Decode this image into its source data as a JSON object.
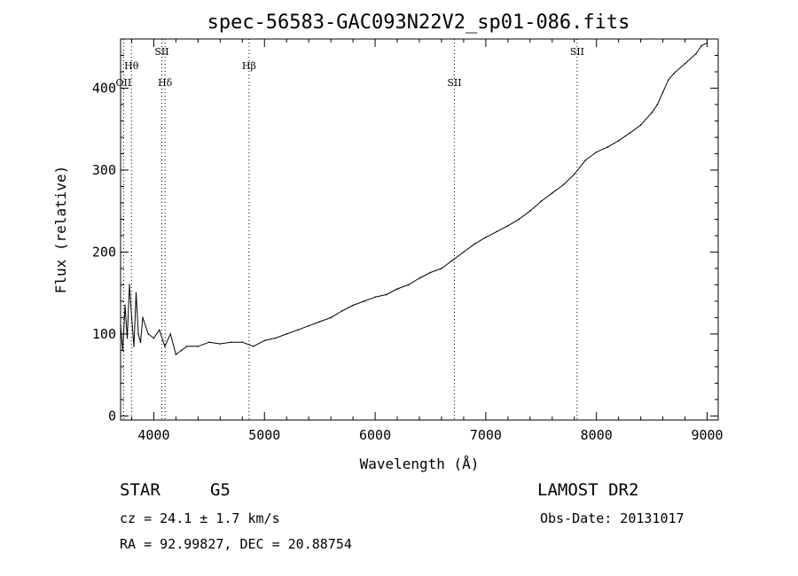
{
  "chart_data": {
    "type": "line",
    "title": "spec-56583-GAC093N22V2_sp01-086.fits",
    "xlabel": "Wavelength (Å)",
    "ylabel": "Flux (relative)",
    "xlim": [
      3700,
      9100
    ],
    "ylim": [
      -5,
      460
    ],
    "x_ticks": [
      4000,
      5000,
      6000,
      7000,
      8000,
      9000
    ],
    "y_ticks": [
      0,
      100,
      200,
      300,
      400
    ],
    "grid": false,
    "series": [
      {
        "x": [
          3700,
          3720,
          3740,
          3760,
          3780,
          3800,
          3820,
          3840,
          3860,
          3880,
          3900,
          3950,
          4000,
          4050,
          4100,
          4150,
          4200,
          4250,
          4300,
          4400,
          4500,
          4600,
          4700,
          4800,
          4900,
          5000,
          5100,
          5200,
          5300,
          5400,
          5500,
          5600,
          5700,
          5800,
          5900,
          6000,
          6100,
          6200,
          6300,
          6400,
          6500,
          6600,
          6700,
          6800,
          6900,
          7000,
          7100,
          7200,
          7300,
          7400,
          7500,
          7600,
          7700,
          7800,
          7900,
          8000,
          8100,
          8200,
          8300,
          8400,
          8500,
          8550,
          8600,
          8650,
          8700,
          8800,
          8900,
          8950,
          9000
        ],
        "y": [
          110,
          80,
          135,
          95,
          160,
          120,
          85,
          150,
          100,
          90,
          120,
          100,
          95,
          105,
          85,
          100,
          75,
          80,
          85,
          85,
          90,
          88,
          90,
          90,
          85,
          92,
          95,
          100,
          105,
          110,
          115,
          120,
          128,
          135,
          140,
          145,
          148,
          155,
          160,
          168,
          175,
          180,
          190,
          200,
          210,
          218,
          225,
          232,
          240,
          250,
          262,
          272,
          282,
          295,
          312,
          322,
          328,
          336,
          345,
          355,
          370,
          380,
          395,
          410,
          418,
          430,
          442,
          452,
          455
        ]
      }
    ],
    "emission_lines": [
      {
        "label": "OII",
        "x": 3727,
        "tier": "low"
      },
      {
        "label": "Hθ",
        "x": 3798,
        "tier": "mid"
      },
      {
        "label": "SII",
        "x": 4072,
        "tier": "high"
      },
      {
        "label": "Hδ",
        "x": 4102,
        "tier": "low"
      },
      {
        "label": "Hβ",
        "x": 4861,
        "tier": "mid"
      },
      {
        "label": "SII",
        "x": 6716,
        "tier": "low"
      },
      {
        "label": "SII",
        "x": 7825,
        "tier": "high"
      }
    ]
  },
  "info": {
    "class": "STAR",
    "subclass": "G5",
    "survey": "LAMOST DR2",
    "cz": "cz = 24.1 ± 1.7 km/s",
    "obs_date": "Obs-Date: 20131017",
    "coords": "RA =  92.99827, DEC =  20.88754"
  }
}
